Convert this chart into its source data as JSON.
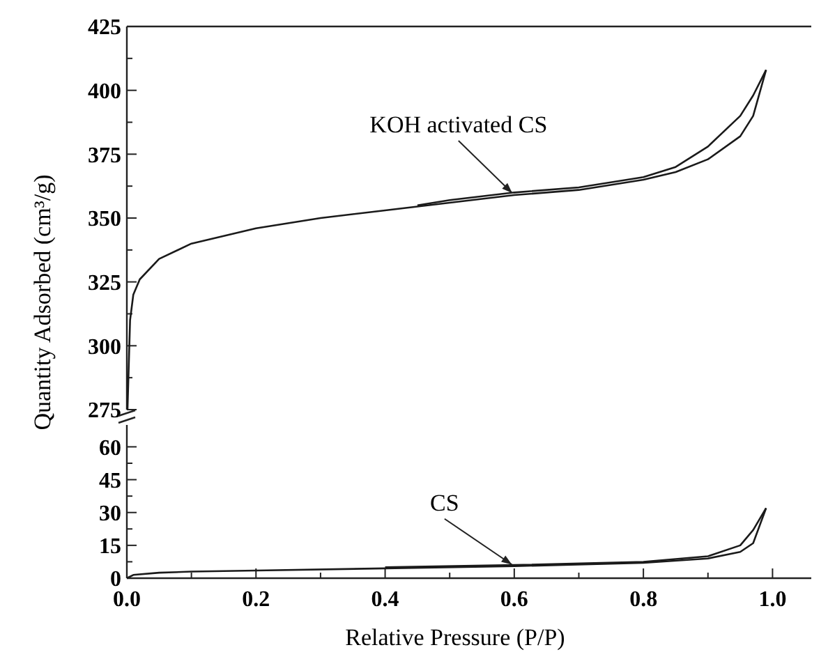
{
  "chart_data": [
    {
      "type": "line",
      "ylabel": "Quantity Adsorbed (cm³/g)",
      "xlim": [
        0,
        1.06
      ],
      "ylim": [
        275,
        425
      ],
      "tick_labels": "y",
      "yticks": [
        275,
        {
          "value": 287.5,
          "label": null
        },
        300,
        {
          "value": 312.5,
          "label": null
        },
        325,
        {
          "value": 337.5,
          "label": null
        },
        350,
        {
          "value": 362.5,
          "label": null
        },
        375,
        {
          "value": 387.5,
          "label": null
        },
        400,
        {
          "value": 412.5,
          "label": null
        },
        425
      ],
      "series": [
        {
          "name": "KOH activated CS",
          "color": "#1a1a1a",
          "x": [
            0.001,
            0.005,
            0.01,
            0.02,
            0.05,
            0.1,
            0.2,
            0.3,
            0.4,
            0.5,
            0.6,
            0.7,
            0.8,
            0.85,
            0.9,
            0.95,
            0.97,
            0.99
          ],
          "values": [
            275,
            310,
            320,
            326,
            334,
            340,
            346,
            350,
            353,
            356,
            359,
            361,
            365,
            368,
            373,
            382,
            390,
            408
          ]
        },
        {
          "color": "#1a1a1a",
          "x": [
            0.99,
            0.97,
            0.95,
            0.9,
            0.85,
            0.8,
            0.7,
            0.6,
            0.5,
            0.45
          ],
          "values": [
            408,
            398,
            390,
            378,
            370,
            366,
            362,
            360,
            357,
            355
          ]
        }
      ]
    },
    {
      "type": "line",
      "xlabel": "Relative Pressure (P/P)",
      "xlim": [
        0,
        1.06
      ],
      "ylim": [
        0,
        70
      ],
      "xticks": [
        {
          "value": 0,
          "label": "0.0"
        },
        {
          "value": 0.1,
          "label": null
        },
        {
          "value": 0.2,
          "label": "0.2"
        },
        {
          "value": 0.3,
          "label": null
        },
        {
          "value": 0.4,
          "label": "0.4"
        },
        {
          "value": 0.5,
          "label": null
        },
        {
          "value": 0.6,
          "label": "0.6"
        },
        {
          "value": 0.7,
          "label": null
        },
        {
          "value": 0.8,
          "label": "0.8"
        },
        {
          "value": 0.9,
          "label": null
        },
        {
          "value": 1.0,
          "label": "1.0"
        }
      ],
      "yticks": [
        0,
        {
          "value": 7.5,
          "label": null
        },
        15,
        {
          "value": 22.5,
          "label": null
        },
        30,
        {
          "value": 37.5,
          "label": null
        },
        45,
        {
          "value": 52.5,
          "label": null
        },
        60
      ],
      "series": [
        {
          "name": "CS",
          "color": "#1a1a1a",
          "x": [
            0,
            0.01,
            0.05,
            0.1,
            0.2,
            0.4,
            0.6,
            0.8,
            0.9,
            0.95,
            0.97,
            0.99
          ],
          "values": [
            0,
            1.5,
            2.5,
            3,
            3.5,
            4.5,
            5.5,
            7,
            9,
            12,
            16,
            32
          ]
        },
        {
          "color": "#1a1a1a",
          "x": [
            0.99,
            0.97,
            0.95,
            0.9,
            0.8,
            0.6,
            0.4
          ],
          "values": [
            32,
            22,
            15,
            10,
            7.5,
            6,
            5
          ]
        }
      ]
    }
  ]
}
